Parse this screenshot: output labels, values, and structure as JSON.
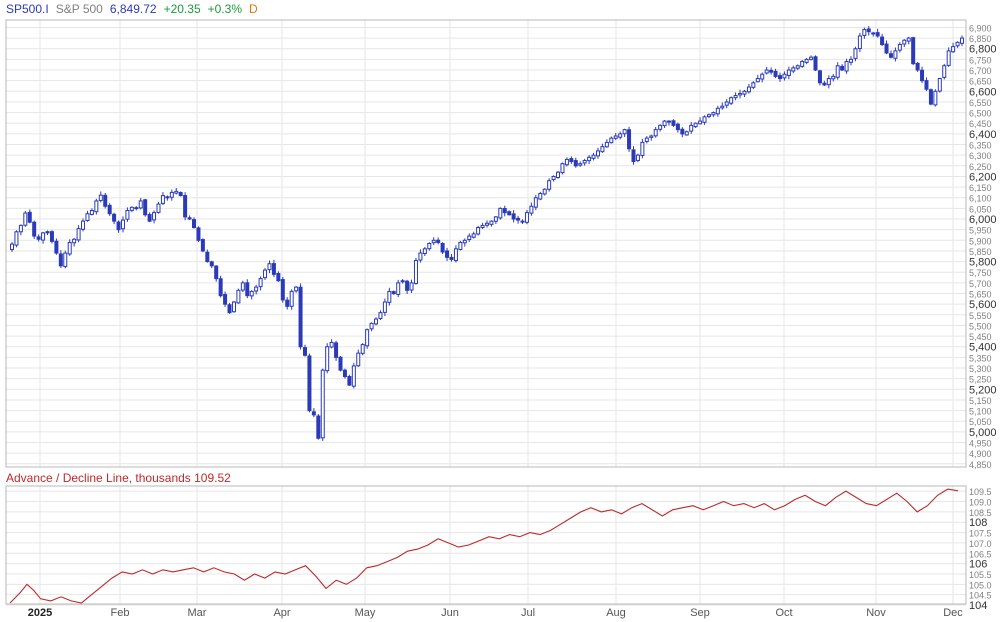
{
  "header": {
    "symbol": "SP500.I",
    "name": "S&P 500",
    "price": "6,849.72",
    "change": "+20.35",
    "percent": "+0.3%",
    "period": "D"
  },
  "indicator": {
    "title": "Advance / Decline Line, thousands 109.52"
  },
  "colors": {
    "candle": "#2a3ab8",
    "ad_line": "#c0282a",
    "grid": "#e6e6e6",
    "border": "#b8b8b8",
    "tick": "#808080"
  },
  "chart_data": [
    {
      "type": "candlestick",
      "title": "S&P 500 (SP500.I), Daily",
      "ylim": [
        4835,
        6935
      ],
      "y_ticks": [
        "6,900",
        "6,850",
        "6,800",
        "6,750",
        "6,700",
        "6,650",
        "6,600",
        "6,550",
        "6,500",
        "6,450",
        "6,400",
        "6,350",
        "6,300",
        "6,250",
        "6,200",
        "6,150",
        "6,100",
        "6,050",
        "6,000",
        "5,950",
        "5,900",
        "5,850",
        "5,800",
        "5,750",
        "5,700",
        "5,650",
        "5,600",
        "5,550",
        "5,500",
        "5,450",
        "5,400",
        "5,350",
        "5,300",
        "5,250",
        "5,200",
        "5,150",
        "5,100",
        "5,050",
        "5,000",
        "4,950",
        "4,900",
        "4,850"
      ],
      "y_ticks_major": [
        "6,800",
        "6,600",
        "6,400",
        "6,200",
        "6,000",
        "5,800",
        "5,600",
        "5,400",
        "5,200",
        "5,000"
      ],
      "x_ticks": [
        "2025",
        "Feb",
        "Mar",
        "Apr",
        "May",
        "Jun",
        "Jul",
        "Aug",
        "Sep",
        "Oct",
        "Nov",
        "Dec"
      ],
      "closes": [
        5882,
        5940,
        5970,
        6028,
        5985,
        5920,
        5905,
        5935,
        5935,
        5895,
        5840,
        5780,
        5840,
        5890,
        5905,
        5955,
        5990,
        6025,
        6040,
        6085,
        6112,
        6060,
        6025,
        5990,
        5950,
        5995,
        6040,
        6055,
        6050,
        6085,
        6020,
        5990,
        6030,
        6070,
        6110,
        6100,
        6125,
        6130,
        6110,
        6010,
        6000,
        5960,
        5900,
        5850,
        5800,
        5780,
        5720,
        5640,
        5600,
        5560,
        5610,
        5665,
        5700,
        5640,
        5660,
        5680,
        5720,
        5760,
        5790,
        5740,
        5710,
        5620,
        5590,
        5660,
        5680,
        5400,
        5360,
        5100,
        5080,
        4970,
        5290,
        5400,
        5420,
        5350,
        5290,
        5260,
        5220,
        5310,
        5370,
        5410,
        5480,
        5510,
        5530,
        5560,
        5610,
        5660,
        5650,
        5700,
        5710,
        5665,
        5700,
        5805,
        5840,
        5860,
        5885,
        5900,
        5890,
        5845,
        5820,
        5810,
        5860,
        5890,
        5900,
        5920,
        5930,
        5960,
        5970,
        5980,
        5990,
        6010,
        6050,
        6030,
        6020,
        6000,
        5995,
        5990,
        6030,
        6060,
        6100,
        6120,
        6140,
        6180,
        6200,
        6220,
        6260,
        6280,
        6270,
        6250,
        6260,
        6275,
        6290,
        6300,
        6320,
        6340,
        6360,
        6380,
        6390,
        6400,
        6420,
        6330,
        6270,
        6300,
        6360,
        6380,
        6390,
        6420,
        6440,
        6460,
        6460,
        6440,
        6420,
        6400,
        6410,
        6440,
        6450,
        6460,
        6480,
        6490,
        6500,
        6520,
        6530,
        6550,
        6570,
        6580,
        6590,
        6600,
        6620,
        6640,
        6660,
        6680,
        6700,
        6690,
        6670,
        6660,
        6680,
        6700,
        6710,
        6720,
        6740,
        6750,
        6760,
        6700,
        6640,
        6630,
        6660,
        6670,
        6720,
        6700,
        6740,
        6750,
        6800,
        6860,
        6890,
        6880,
        6870,
        6860,
        6820,
        6780,
        6760,
        6790,
        6820,
        6840,
        6850,
        6730,
        6700,
        6650,
        6610,
        6540,
        6600,
        6660,
        6720,
        6790,
        6810,
        6830,
        6850
      ],
      "candle_x_range": [
        12,
        962
      ]
    },
    {
      "type": "line",
      "title": "Advance / Decline Line, thousands",
      "last_value": 109.52,
      "ylim": [
        104.05,
        109.75
      ],
      "y_ticks": [
        "109.5",
        "109.0",
        "108.5",
        "108",
        "107.5",
        "107.0",
        "106.5",
        "106",
        "105.5",
        "105.0",
        "104.5",
        "104"
      ],
      "y_ticks_major": [
        "108",
        "106",
        "104"
      ],
      "keypoints": [
        [
          0,
          104.1
        ],
        [
          3,
          104.6
        ],
        [
          5,
          105.0
        ],
        [
          7,
          104.7
        ],
        [
          9,
          104.3
        ],
        [
          12,
          104.2
        ],
        [
          15,
          104.4
        ],
        [
          18,
          104.2
        ],
        [
          21,
          104.1
        ],
        [
          24,
          104.5
        ],
        [
          27,
          104.9
        ],
        [
          30,
          105.3
        ],
        [
          33,
          105.6
        ],
        [
          36,
          105.5
        ],
        [
          39,
          105.7
        ],
        [
          42,
          105.5
        ],
        [
          45,
          105.7
        ],
        [
          48,
          105.6
        ],
        [
          51,
          105.7
        ],
        [
          54,
          105.8
        ],
        [
          57,
          105.6
        ],
        [
          60,
          105.8
        ],
        [
          63,
          105.6
        ],
        [
          66,
          105.5
        ],
        [
          69,
          105.2
        ],
        [
          72,
          105.5
        ],
        [
          75,
          105.3
        ],
        [
          78,
          105.6
        ],
        [
          81,
          105.5
        ],
        [
          84,
          105.7
        ],
        [
          87,
          105.9
        ],
        [
          90,
          105.4
        ],
        [
          93,
          104.8
        ],
        [
          96,
          105.2
        ],
        [
          99,
          105.0
        ],
        [
          102,
          105.3
        ],
        [
          105,
          105.8
        ],
        [
          108,
          105.9
        ],
        [
          111,
          106.1
        ],
        [
          114,
          106.3
        ],
        [
          117,
          106.6
        ],
        [
          120,
          106.7
        ],
        [
          123,
          106.9
        ],
        [
          126,
          107.2
        ],
        [
          129,
          107.0
        ],
        [
          132,
          106.8
        ],
        [
          135,
          106.9
        ],
        [
          138,
          107.1
        ],
        [
          141,
          107.3
        ],
        [
          144,
          107.2
        ],
        [
          147,
          107.4
        ],
        [
          150,
          107.3
        ],
        [
          153,
          107.5
        ],
        [
          156,
          107.4
        ],
        [
          159,
          107.6
        ],
        [
          162,
          107.9
        ],
        [
          165,
          108.2
        ],
        [
          168,
          108.5
        ],
        [
          171,
          108.7
        ],
        [
          174,
          108.5
        ],
        [
          177,
          108.6
        ],
        [
          180,
          108.4
        ],
        [
          183,
          108.7
        ],
        [
          186,
          108.9
        ],
        [
          189,
          108.6
        ],
        [
          192,
          108.3
        ],
        [
          195,
          108.6
        ],
        [
          198,
          108.7
        ],
        [
          201,
          108.8
        ],
        [
          204,
          108.6
        ],
        [
          207,
          108.8
        ],
        [
          210,
          109.0
        ],
        [
          213,
          108.8
        ],
        [
          216,
          108.9
        ],
        [
          219,
          108.7
        ],
        [
          222,
          108.9
        ],
        [
          225,
          108.6
        ],
        [
          228,
          108.8
        ],
        [
          231,
          109.1
        ],
        [
          234,
          109.3
        ],
        [
          237,
          109.0
        ],
        [
          240,
          108.8
        ],
        [
          243,
          109.2
        ],
        [
          246,
          109.5
        ],
        [
          249,
          109.2
        ],
        [
          252,
          108.9
        ],
        [
          255,
          108.8
        ],
        [
          258,
          109.1
        ],
        [
          261,
          109.4
        ],
        [
          264,
          109.0
        ],
        [
          267,
          108.5
        ],
        [
          270,
          108.8
        ],
        [
          273,
          109.3
        ],
        [
          276,
          109.6
        ],
        [
          279,
          109.52
        ]
      ],
      "keypoint_x_max": 279
    }
  ]
}
